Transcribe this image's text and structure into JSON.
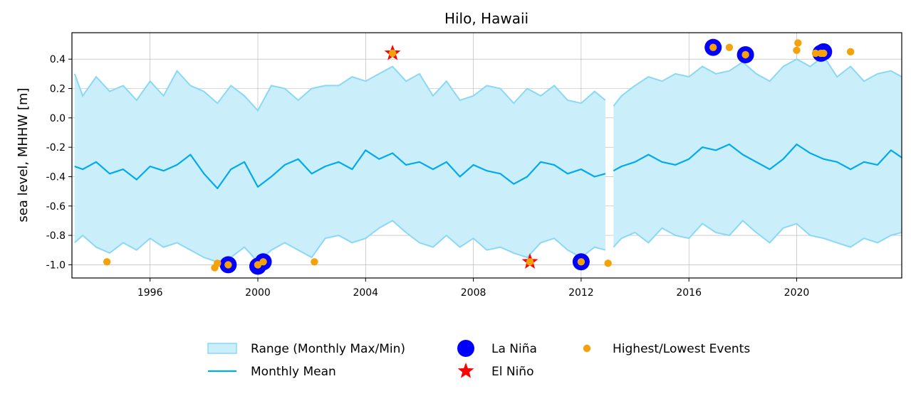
{
  "chart_data": {
    "type": "line",
    "title": "Hilo, Hawaii",
    "xlabel": "",
    "ylabel": "sea level, MHHW [m]",
    "xlim": [
      1993.1,
      2023.9
    ],
    "ylim": [
      -1.09,
      0.58
    ],
    "x_ticks": [
      "1996",
      "2000",
      "2004",
      "2008",
      "2012",
      "2016",
      "2020"
    ],
    "y_ticks": [
      "-1.0",
      "-0.8",
      "-0.6",
      "-0.4",
      "-0.2",
      "0.0",
      "0.2",
      "0.4"
    ],
    "grid": true,
    "gap": [
      2012.9,
      2013.2
    ],
    "series": [
      {
        "name": "Range (Monthly Max/Min)",
        "kind": "band",
        "color": "#cbeefb",
        "edge_color": "#8ad8f5",
        "upper": [
          [
            1993.2,
            0.3
          ],
          [
            1993.5,
            0.15
          ],
          [
            1994.0,
            0.28
          ],
          [
            1994.5,
            0.18
          ],
          [
            1995.0,
            0.22
          ],
          [
            1995.5,
            0.12
          ],
          [
            1996.0,
            0.25
          ],
          [
            1996.5,
            0.15
          ],
          [
            1997.0,
            0.32
          ],
          [
            1997.5,
            0.22
          ],
          [
            1998.0,
            0.18
          ],
          [
            1998.5,
            0.1
          ],
          [
            1999.0,
            0.22
          ],
          [
            1999.5,
            0.15
          ],
          [
            2000.0,
            0.05
          ],
          [
            2000.5,
            0.22
          ],
          [
            2001.0,
            0.2
          ],
          [
            2001.5,
            0.12
          ],
          [
            2002.0,
            0.2
          ],
          [
            2002.5,
            0.22
          ],
          [
            2003.0,
            0.22
          ],
          [
            2003.5,
            0.28
          ],
          [
            2004.0,
            0.25
          ],
          [
            2004.5,
            0.3
          ],
          [
            2005.0,
            0.35
          ],
          [
            2005.5,
            0.25
          ],
          [
            2006.0,
            0.3
          ],
          [
            2006.5,
            0.15
          ],
          [
            2007.0,
            0.25
          ],
          [
            2007.5,
            0.12
          ],
          [
            2008.0,
            0.15
          ],
          [
            2008.5,
            0.22
          ],
          [
            2009.0,
            0.2
          ],
          [
            2009.5,
            0.1
          ],
          [
            2010.0,
            0.2
          ],
          [
            2010.5,
            0.15
          ],
          [
            2011.0,
            0.22
          ],
          [
            2011.5,
            0.12
          ],
          [
            2012.0,
            0.1
          ],
          [
            2012.5,
            0.18
          ],
          [
            2012.9,
            0.12
          ],
          [
            2013.2,
            0.08
          ],
          [
            2013.5,
            0.15
          ],
          [
            2014.0,
            0.22
          ],
          [
            2014.5,
            0.28
          ],
          [
            2015.0,
            0.25
          ],
          [
            2015.5,
            0.3
          ],
          [
            2016.0,
            0.28
          ],
          [
            2016.5,
            0.35
          ],
          [
            2017.0,
            0.3
          ],
          [
            2017.5,
            0.32
          ],
          [
            2018.0,
            0.38
          ],
          [
            2018.5,
            0.3
          ],
          [
            2019.0,
            0.25
          ],
          [
            2019.5,
            0.35
          ],
          [
            2020.0,
            0.4
          ],
          [
            2020.5,
            0.35
          ],
          [
            2021.0,
            0.42
          ],
          [
            2021.5,
            0.28
          ],
          [
            2022.0,
            0.35
          ],
          [
            2022.5,
            0.25
          ],
          [
            2023.0,
            0.3
          ],
          [
            2023.5,
            0.32
          ],
          [
            2023.9,
            0.28
          ]
        ],
        "lower": [
          [
            1993.2,
            -0.85
          ],
          [
            1993.5,
            -0.8
          ],
          [
            1994.0,
            -0.88
          ],
          [
            1994.5,
            -0.92
          ],
          [
            1995.0,
            -0.85
          ],
          [
            1995.5,
            -0.9
          ],
          [
            1996.0,
            -0.82
          ],
          [
            1996.5,
            -0.88
          ],
          [
            1997.0,
            -0.85
          ],
          [
            1997.5,
            -0.9
          ],
          [
            1998.0,
            -0.95
          ],
          [
            1998.5,
            -0.98
          ],
          [
            1999.0,
            -0.95
          ],
          [
            1999.5,
            -0.88
          ],
          [
            2000.0,
            -0.98
          ],
          [
            2000.5,
            -0.9
          ],
          [
            2001.0,
            -0.85
          ],
          [
            2001.5,
            -0.9
          ],
          [
            2002.0,
            -0.95
          ],
          [
            2002.5,
            -0.82
          ],
          [
            2003.0,
            -0.8
          ],
          [
            2003.5,
            -0.85
          ],
          [
            2004.0,
            -0.82
          ],
          [
            2004.5,
            -0.75
          ],
          [
            2005.0,
            -0.7
          ],
          [
            2005.5,
            -0.78
          ],
          [
            2006.0,
            -0.85
          ],
          [
            2006.5,
            -0.88
          ],
          [
            2007.0,
            -0.8
          ],
          [
            2007.5,
            -0.88
          ],
          [
            2008.0,
            -0.82
          ],
          [
            2008.5,
            -0.9
          ],
          [
            2009.0,
            -0.88
          ],
          [
            2009.5,
            -0.92
          ],
          [
            2010.0,
            -0.95
          ],
          [
            2010.5,
            -0.85
          ],
          [
            2011.0,
            -0.82
          ],
          [
            2011.5,
            -0.9
          ],
          [
            2012.0,
            -0.95
          ],
          [
            2012.5,
            -0.88
          ],
          [
            2012.9,
            -0.9
          ],
          [
            2013.2,
            -0.88
          ],
          [
            2013.5,
            -0.82
          ],
          [
            2014.0,
            -0.78
          ],
          [
            2014.5,
            -0.85
          ],
          [
            2015.0,
            -0.75
          ],
          [
            2015.5,
            -0.8
          ],
          [
            2016.0,
            -0.82
          ],
          [
            2016.5,
            -0.72
          ],
          [
            2017.0,
            -0.78
          ],
          [
            2017.5,
            -0.8
          ],
          [
            2018.0,
            -0.7
          ],
          [
            2018.5,
            -0.78
          ],
          [
            2019.0,
            -0.85
          ],
          [
            2019.5,
            -0.75
          ],
          [
            2020.0,
            -0.72
          ],
          [
            2020.5,
            -0.8
          ],
          [
            2021.0,
            -0.82
          ],
          [
            2021.5,
            -0.85
          ],
          [
            2022.0,
            -0.88
          ],
          [
            2022.5,
            -0.82
          ],
          [
            2023.0,
            -0.85
          ],
          [
            2023.5,
            -0.8
          ],
          [
            2023.9,
            -0.78
          ]
        ]
      },
      {
        "name": "Monthly Mean",
        "kind": "line",
        "color": "#00aaef",
        "points": [
          [
            1993.2,
            -0.33
          ],
          [
            1993.5,
            -0.35
          ],
          [
            1994.0,
            -0.3
          ],
          [
            1994.5,
            -0.38
          ],
          [
            1995.0,
            -0.35
          ],
          [
            1995.5,
            -0.42
          ],
          [
            1996.0,
            -0.33
          ],
          [
            1996.5,
            -0.36
          ],
          [
            1997.0,
            -0.32
          ],
          [
            1997.5,
            -0.25
          ],
          [
            1998.0,
            -0.38
          ],
          [
            1998.5,
            -0.48
          ],
          [
            1999.0,
            -0.35
          ],
          [
            1999.5,
            -0.3
          ],
          [
            2000.0,
            -0.47
          ],
          [
            2000.5,
            -0.4
          ],
          [
            2001.0,
            -0.32
          ],
          [
            2001.5,
            -0.28
          ],
          [
            2002.0,
            -0.38
          ],
          [
            2002.5,
            -0.33
          ],
          [
            2003.0,
            -0.3
          ],
          [
            2003.5,
            -0.35
          ],
          [
            2004.0,
            -0.22
          ],
          [
            2004.5,
            -0.28
          ],
          [
            2005.0,
            -0.24
          ],
          [
            2005.5,
            -0.32
          ],
          [
            2006.0,
            -0.3
          ],
          [
            2006.5,
            -0.35
          ],
          [
            2007.0,
            -0.3
          ],
          [
            2007.5,
            -0.4
          ],
          [
            2008.0,
            -0.32
          ],
          [
            2008.5,
            -0.36
          ],
          [
            2009.0,
            -0.38
          ],
          [
            2009.5,
            -0.45
          ],
          [
            2010.0,
            -0.4
          ],
          [
            2010.5,
            -0.3
          ],
          [
            2011.0,
            -0.32
          ],
          [
            2011.5,
            -0.38
          ],
          [
            2012.0,
            -0.35
          ],
          [
            2012.5,
            -0.4
          ],
          [
            2012.9,
            -0.38
          ],
          [
            2013.2,
            -0.36
          ],
          [
            2013.5,
            -0.33
          ],
          [
            2014.0,
            -0.3
          ],
          [
            2014.5,
            -0.25
          ],
          [
            2015.0,
            -0.3
          ],
          [
            2015.5,
            -0.32
          ],
          [
            2016.0,
            -0.28
          ],
          [
            2016.5,
            -0.2
          ],
          [
            2017.0,
            -0.22
          ],
          [
            2017.5,
            -0.18
          ],
          [
            2018.0,
            -0.25
          ],
          [
            2018.5,
            -0.3
          ],
          [
            2019.0,
            -0.35
          ],
          [
            2019.5,
            -0.28
          ],
          [
            2020.0,
            -0.18
          ],
          [
            2020.5,
            -0.24
          ],
          [
            2021.0,
            -0.28
          ],
          [
            2021.5,
            -0.3
          ],
          [
            2022.0,
            -0.35
          ],
          [
            2022.5,
            -0.3
          ],
          [
            2023.0,
            -0.32
          ],
          [
            2023.5,
            -0.22
          ],
          [
            2023.9,
            -0.27
          ]
        ]
      },
      {
        "name": "La Niña",
        "kind": "scatter",
        "marker": "circle",
        "color": "#0000ff",
        "points": [
          [
            1998.9,
            -1.0
          ],
          [
            2000.0,
            -1.01
          ],
          [
            2000.2,
            -0.98
          ],
          [
            2012.0,
            -0.98
          ],
          [
            2016.9,
            0.48
          ],
          [
            2018.1,
            0.43
          ],
          [
            2020.9,
            0.44
          ],
          [
            2021.0,
            0.45
          ]
        ]
      },
      {
        "name": "El Niño",
        "kind": "scatter",
        "marker": "star",
        "color": "#ff0000",
        "points": [
          [
            2005.0,
            0.44
          ],
          [
            2010.1,
            -0.98
          ]
        ]
      },
      {
        "name": "Highest/Lowest Events",
        "kind": "scatter",
        "marker": "circle",
        "color": "#f5a20a",
        "points": [
          [
            1994.4,
            -0.98
          ],
          [
            1998.4,
            -1.02
          ],
          [
            1998.5,
            -0.99
          ],
          [
            1998.9,
            -1.0
          ],
          [
            2000.0,
            -1.0
          ],
          [
            2000.2,
            -0.98
          ],
          [
            2002.1,
            -0.98
          ],
          [
            2005.0,
            0.44
          ],
          [
            2010.1,
            -0.98
          ],
          [
            2012.0,
            -0.98
          ],
          [
            2013.0,
            -0.99
          ],
          [
            2016.9,
            0.48
          ],
          [
            2017.5,
            0.48
          ],
          [
            2018.1,
            0.43
          ],
          [
            2020.0,
            0.46
          ],
          [
            2020.05,
            0.51
          ],
          [
            2020.7,
            0.44
          ],
          [
            2020.9,
            0.44
          ],
          [
            2021.0,
            0.44
          ],
          [
            2022.0,
            0.45
          ]
        ]
      }
    ],
    "legend": {
      "placement": "bottom",
      "items": [
        {
          "label": "Range (Monthly Max/Min)",
          "symbol": "band"
        },
        {
          "label": "Monthly Mean",
          "symbol": "line"
        },
        {
          "label": "La Niña",
          "symbol": "big-circle"
        },
        {
          "label": "El Niño",
          "symbol": "star"
        },
        {
          "label": "Highest/Lowest Events",
          "symbol": "small-circle"
        }
      ]
    }
  }
}
